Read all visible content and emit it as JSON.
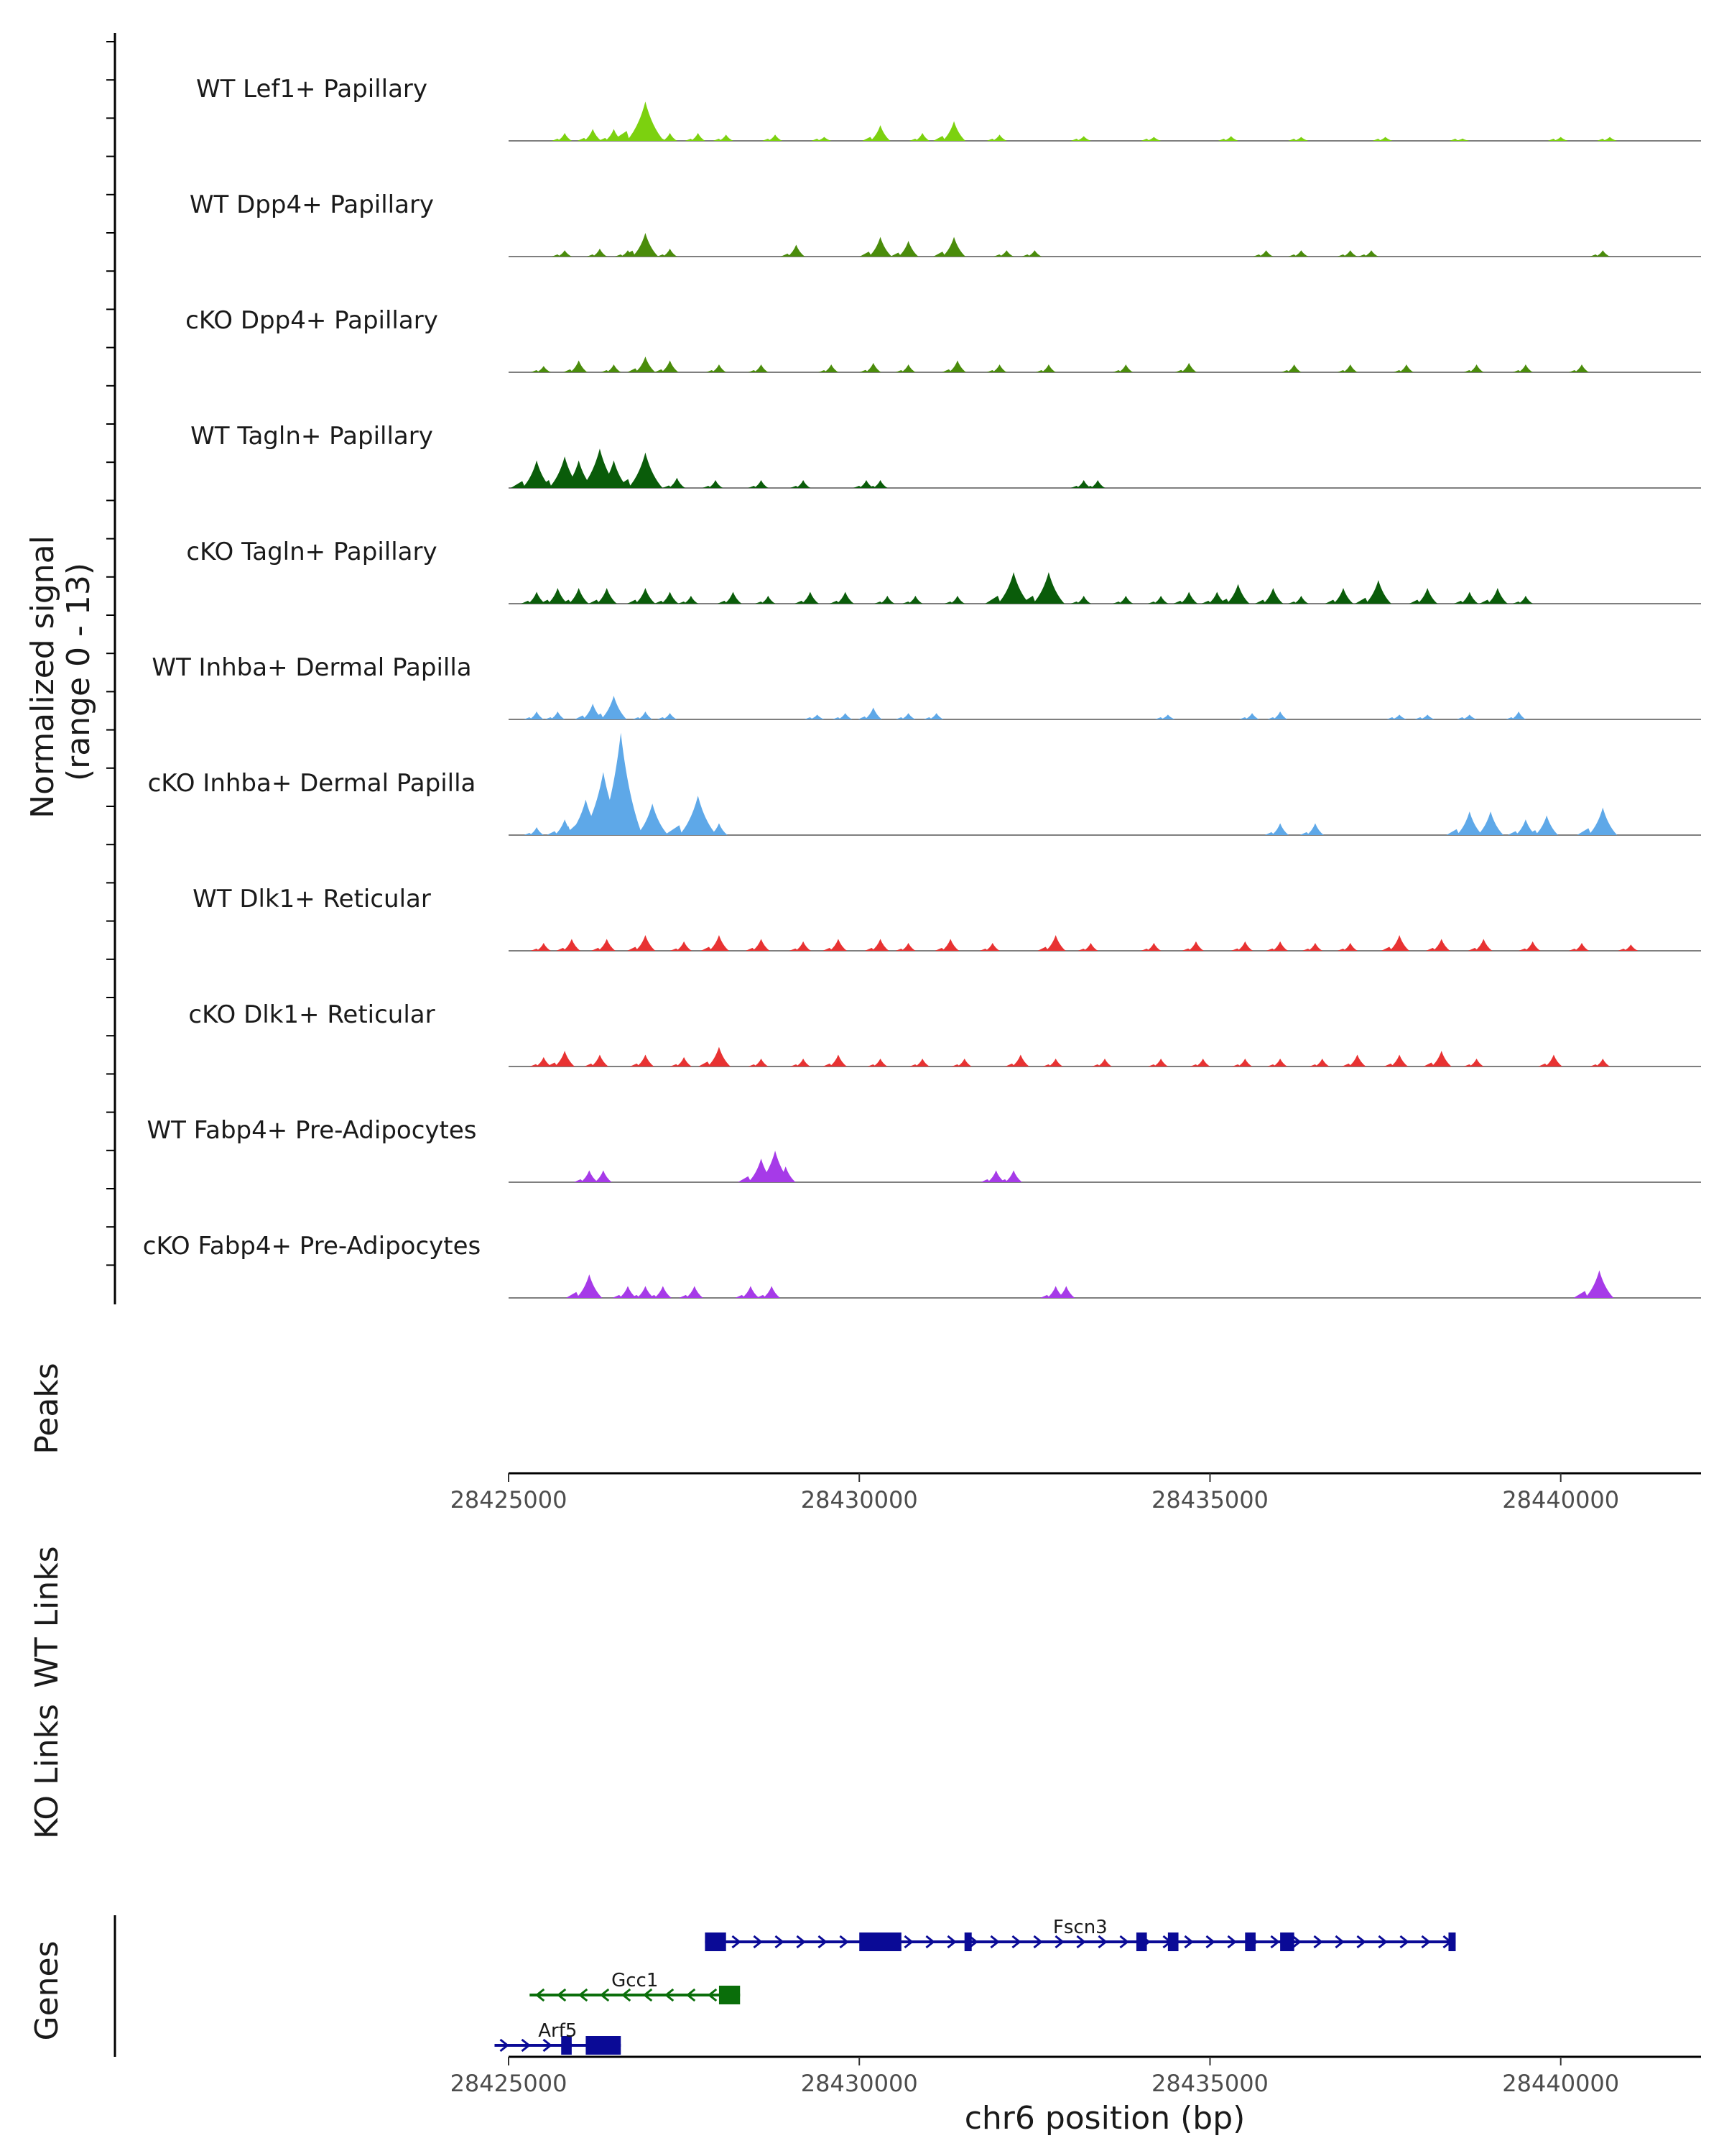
{
  "chart_data": {
    "type": "area",
    "title": "",
    "ylabel": "Normalized signal\n(range 0 - 13)",
    "ylabel_lines": [
      "Normalized signal",
      "(range 0 - 13)"
    ],
    "ylim": [
      0,
      13
    ],
    "xlabel": "chr6 position (bp)",
    "xlim": [
      28425000,
      28442000
    ],
    "xticks": [
      28425000,
      28430000,
      28435000,
      28440000
    ],
    "xtick_labels": [
      "28425000",
      "28430000",
      "28435000",
      "28440000"
    ],
    "tracks": [
      {
        "name": "WT Lef1+ Papillary",
        "color": "#7cd10f",
        "peaks": [
          [
            28425800,
            1
          ],
          [
            28426200,
            1.5
          ],
          [
            28426500,
            1.5
          ],
          [
            28426950,
            5
          ],
          [
            28427300,
            1
          ],
          [
            28427700,
            1
          ],
          [
            28428100,
            0.8
          ],
          [
            28428800,
            0.8
          ],
          [
            28429500,
            0.5
          ],
          [
            28430300,
            2
          ],
          [
            28430900,
            1
          ],
          [
            28431350,
            2.5
          ],
          [
            28432000,
            0.8
          ],
          [
            28433200,
            0.6
          ],
          [
            28434200,
            0.5
          ],
          [
            28435300,
            0.6
          ],
          [
            28436300,
            0.5
          ],
          [
            28437500,
            0.5
          ],
          [
            28438600,
            0.3
          ],
          [
            28440000,
            0.5
          ],
          [
            28440700,
            0.5
          ]
        ]
      },
      {
        "name": "WT Dpp4+ Papillary",
        "color": "#4a8c0b",
        "peaks": [
          [
            28425800,
            0.8
          ],
          [
            28426300,
            1
          ],
          [
            28426700,
            0.8
          ],
          [
            28426950,
            3
          ],
          [
            28427300,
            1
          ],
          [
            28429100,
            1.5
          ],
          [
            28430300,
            2.5
          ],
          [
            28430700,
            2
          ],
          [
            28431350,
            2.5
          ],
          [
            28432100,
            0.8
          ],
          [
            28432500,
            0.8
          ],
          [
            28435800,
            0.8
          ],
          [
            28436300,
            0.8
          ],
          [
            28437000,
            0.8
          ],
          [
            28437300,
            0.8
          ],
          [
            28440600,
            0.8
          ]
        ]
      },
      {
        "name": "cKO Dpp4+ Papillary",
        "color": "#4a8c0b",
        "peaks": [
          [
            28425500,
            0.8
          ],
          [
            28426000,
            1.5
          ],
          [
            28426500,
            1
          ],
          [
            28426950,
            2
          ],
          [
            28427300,
            1.5
          ],
          [
            28428000,
            1
          ],
          [
            28428600,
            1
          ],
          [
            28429600,
            1
          ],
          [
            28430200,
            1.2
          ],
          [
            28430700,
            1
          ],
          [
            28431400,
            1.5
          ],
          [
            28432000,
            1
          ],
          [
            28432700,
            1
          ],
          [
            28433800,
            1
          ],
          [
            28434700,
            1.2
          ],
          [
            28436200,
            1
          ],
          [
            28437000,
            1
          ],
          [
            28437800,
            1
          ],
          [
            28438800,
            1
          ],
          [
            28439500,
            1
          ],
          [
            28440300,
            1
          ]
        ]
      },
      {
        "name": "WT Tagln+ Papillary",
        "color": "#0a5c0a",
        "peaks": [
          [
            28425400,
            3.5
          ],
          [
            28425800,
            4
          ],
          [
            28426000,
            3.5
          ],
          [
            28426300,
            5
          ],
          [
            28426500,
            3.5
          ],
          [
            28426950,
            4.5
          ],
          [
            28427400,
            1.3
          ],
          [
            28427950,
            1
          ],
          [
            28428600,
            1
          ],
          [
            28429200,
            1
          ],
          [
            28430100,
            1
          ],
          [
            28430300,
            1
          ],
          [
            28433200,
            1
          ],
          [
            28433400,
            1
          ]
        ]
      },
      {
        "name": "cKO Tagln+ Papillary",
        "color": "#0a5c0a",
        "peaks": [
          [
            28425400,
            1.5
          ],
          [
            28425700,
            2
          ],
          [
            28426000,
            2
          ],
          [
            28426400,
            2
          ],
          [
            28426950,
            2
          ],
          [
            28427300,
            1.5
          ],
          [
            28427600,
            1
          ],
          [
            28428200,
            1.5
          ],
          [
            28428700,
            1
          ],
          [
            28429300,
            1.5
          ],
          [
            28429800,
            1.5
          ],
          [
            28430400,
            1
          ],
          [
            28430800,
            1
          ],
          [
            28431400,
            1
          ],
          [
            28432200,
            4
          ],
          [
            28432700,
            4
          ],
          [
            28433200,
            1
          ],
          [
            28433800,
            1
          ],
          [
            28434300,
            1
          ],
          [
            28434700,
            1.5
          ],
          [
            28435100,
            1.5
          ],
          [
            28435400,
            2.5
          ],
          [
            28435900,
            2
          ],
          [
            28436300,
            1
          ],
          [
            28436900,
            2
          ],
          [
            28437400,
            3
          ],
          [
            28438100,
            2
          ],
          [
            28438700,
            1.5
          ],
          [
            28439100,
            2
          ],
          [
            28439500,
            1
          ]
        ]
      },
      {
        "name": "WT Inhba+ Dermal Papilla",
        "color": "#5ea8e8",
        "peaks": [
          [
            28425400,
            1
          ],
          [
            28425700,
            1
          ],
          [
            28426200,
            2
          ],
          [
            28426500,
            3
          ],
          [
            28426950,
            1
          ],
          [
            28427300,
            0.8
          ],
          [
            28429400,
            0.6
          ],
          [
            28429800,
            0.8
          ],
          [
            28430200,
            1.5
          ],
          [
            28430700,
            0.8
          ],
          [
            28431100,
            0.8
          ],
          [
            28434400,
            0.6
          ],
          [
            28435600,
            0.8
          ],
          [
            28436000,
            1
          ],
          [
            28437700,
            0.6
          ],
          [
            28438100,
            0.6
          ],
          [
            28438700,
            0.6
          ],
          [
            28439400,
            1
          ]
        ]
      },
      {
        "name": "cKO Inhba+ Dermal Papilla",
        "color": "#5ea8e8",
        "peaks": [
          [
            28425400,
            1
          ],
          [
            28425800,
            2
          ],
          [
            28426100,
            4.5
          ],
          [
            28426350,
            8
          ],
          [
            28426600,
            13
          ],
          [
            28426800,
            2
          ],
          [
            28427050,
            4
          ],
          [
            28427700,
            5
          ],
          [
            28428000,
            1.5
          ],
          [
            28436000,
            1.5
          ],
          [
            28436500,
            1.5
          ],
          [
            28438700,
            3
          ],
          [
            28439000,
            3
          ],
          [
            28439500,
            2
          ],
          [
            28439800,
            2.5
          ],
          [
            28440600,
            3.5
          ]
        ]
      },
      {
        "name": "WT Dlk1+ Reticular",
        "color": "#e83232",
        "peaks": [
          [
            28425500,
            1
          ],
          [
            28425900,
            1.5
          ],
          [
            28426400,
            1.5
          ],
          [
            28426950,
            2
          ],
          [
            28427500,
            1.2
          ],
          [
            28428000,
            2
          ],
          [
            28428600,
            1.5
          ],
          [
            28429200,
            1.2
          ],
          [
            28429700,
            1.5
          ],
          [
            28430300,
            1.5
          ],
          [
            28430700,
            1
          ],
          [
            28431300,
            1.5
          ],
          [
            28431900,
            1
          ],
          [
            28432800,
            2
          ],
          [
            28433300,
            1
          ],
          [
            28434200,
            1
          ],
          [
            28434800,
            1.2
          ],
          [
            28435500,
            1.2
          ],
          [
            28436000,
            1.2
          ],
          [
            28436500,
            1
          ],
          [
            28437000,
            1
          ],
          [
            28437700,
            2
          ],
          [
            28438300,
            1.5
          ],
          [
            28438900,
            1.5
          ],
          [
            28439600,
            1.2
          ],
          [
            28440300,
            1
          ],
          [
            28441000,
            0.8
          ]
        ]
      },
      {
        "name": "cKO Dlk1+ Reticular",
        "color": "#e83232",
        "peaks": [
          [
            28425500,
            1.2
          ],
          [
            28425800,
            2
          ],
          [
            28426300,
            1.5
          ],
          [
            28426950,
            1.5
          ],
          [
            28427500,
            1.2
          ],
          [
            28428000,
            2.5
          ],
          [
            28428600,
            1
          ],
          [
            28429200,
            1
          ],
          [
            28429700,
            1.5
          ],
          [
            28430300,
            1
          ],
          [
            28430900,
            1
          ],
          [
            28431500,
            1
          ],
          [
            28432300,
            1.5
          ],
          [
            28432800,
            1
          ],
          [
            28433500,
            1
          ],
          [
            28434300,
            1
          ],
          [
            28434900,
            1
          ],
          [
            28435500,
            1
          ],
          [
            28436000,
            1
          ],
          [
            28436600,
            1
          ],
          [
            28437100,
            1.5
          ],
          [
            28437700,
            1.5
          ],
          [
            28438300,
            2
          ],
          [
            28438800,
            1
          ],
          [
            28439900,
            1.5
          ],
          [
            28440600,
            1
          ]
        ]
      },
      {
        "name": "WT Fabp4+ Pre-Adipocytes",
        "color": "#a63ae8",
        "peaks": [
          [
            28426150,
            1.5
          ],
          [
            28426350,
            1.5
          ],
          [
            28428600,
            3
          ],
          [
            28428800,
            4
          ],
          [
            28428950,
            2
          ],
          [
            28431950,
            1.5
          ],
          [
            28432200,
            1.5
          ]
        ]
      },
      {
        "name": "cKO Fabp4+ Pre-Adipocytes",
        "color": "#a63ae8",
        "peaks": [
          [
            28426150,
            3
          ],
          [
            28426700,
            1.5
          ],
          [
            28426950,
            1.5
          ],
          [
            28427200,
            1.5
          ],
          [
            28427650,
            1.5
          ],
          [
            28428450,
            1.5
          ],
          [
            28428750,
            1.5
          ],
          [
            28432800,
            1.5
          ],
          [
            28432950,
            1.5
          ],
          [
            28440550,
            3.5
          ]
        ]
      }
    ],
    "panels": [
      "Peaks",
      "WT Links",
      "KO Links",
      "Genes"
    ],
    "genes": [
      {
        "name": "Fscn3",
        "strand": "+",
        "start": 28427800,
        "end": 28438500,
        "color": "#0a0a96",
        "exons": [
          [
            28427800,
            28428100
          ],
          [
            28430000,
            28430600
          ],
          [
            28431500,
            28431600
          ],
          [
            28433950,
            28434100
          ],
          [
            28434400,
            28434550
          ],
          [
            28435500,
            28435650
          ],
          [
            28436000,
            28436200
          ],
          [
            28438400,
            28438500
          ]
        ]
      },
      {
        "name": "Gcc1",
        "strand": "-",
        "start": 28425300,
        "end": 28428300,
        "color": "#0a6e0a",
        "exons": [
          [
            28428000,
            28428300
          ]
        ]
      },
      {
        "name": "Arf5",
        "strand": "+",
        "start": 28424800,
        "end": 28426600,
        "color": "#0a0a96",
        "exons": [
          [
            28425750,
            28425900
          ],
          [
            28426100,
            28426600
          ]
        ]
      }
    ]
  }
}
